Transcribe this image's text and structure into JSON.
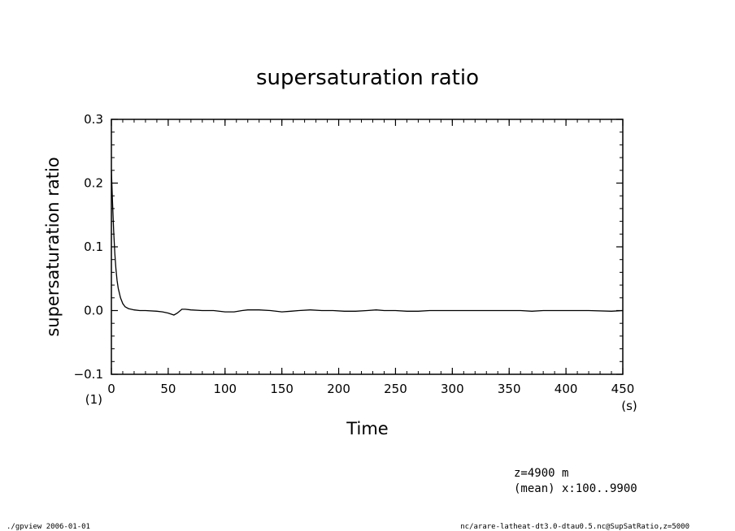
{
  "chart_data": {
    "type": "line",
    "title": "supersaturation ratio",
    "xlabel": "Time",
    "ylabel": "supersaturation ratio",
    "x_unit": "(s)",
    "y_unit": "(1)",
    "xlim": [
      0,
      450
    ],
    "ylim": [
      -0.1,
      0.3
    ],
    "x_ticks": [
      0,
      50,
      100,
      150,
      200,
      250,
      300,
      350,
      400,
      450
    ],
    "y_ticks": [
      -0.1,
      0.0,
      0.1,
      0.2,
      0.3
    ],
    "x_tick_labels": [
      "0",
      "50",
      "100",
      "150",
      "200",
      "250",
      "300",
      "350",
      "400",
      "450"
    ],
    "y_tick_labels": [
      "−0.1",
      "0.0",
      "0.1",
      "0.2",
      "0.3"
    ],
    "x_minor_step": 10,
    "y_minor_step": 0.02,
    "grid": false,
    "series": [
      {
        "x": [
          0,
          1,
          2,
          3,
          4,
          5,
          6,
          8,
          10,
          12,
          15,
          20,
          25,
          30,
          40,
          45,
          50,
          55,
          58,
          62,
          65,
          70,
          80,
          90,
          100,
          108,
          115,
          120,
          130,
          140,
          150,
          158,
          165,
          175,
          185,
          195,
          205,
          215,
          225,
          233,
          240,
          250,
          260,
          270,
          280,
          300,
          320,
          340,
          360,
          370,
          380,
          400,
          420,
          440,
          450
        ],
        "y": [
          0.22,
          0.17,
          0.125,
          0.09,
          0.065,
          0.047,
          0.035,
          0.02,
          0.011,
          0.006,
          0.003,
          0.001,
          0.0,
          0.0,
          -0.001,
          -0.002,
          -0.004,
          -0.007,
          -0.004,
          0.002,
          0.002,
          0.001,
          0.0,
          0.0,
          -0.002,
          -0.002,
          0.0,
          0.001,
          0.001,
          0.0,
          -0.002,
          -0.001,
          0.0,
          0.001,
          0.0,
          0.0,
          -0.001,
          -0.001,
          0.0,
          0.001,
          0.0,
          0.0,
          -0.001,
          -0.001,
          0.0,
          0.0,
          0.0,
          0.0,
          0.0,
          -0.001,
          0.0,
          0.0,
          0.0,
          -0.001,
          0.0
        ]
      }
    ]
  },
  "annotations": {
    "z_level": "z=4900  m",
    "mean_range": "(mean) x:100..9900"
  },
  "footer": {
    "left": "./gpview  2006-01-01",
    "right": "nc/arare-latheat-dt3.0-dtau0.5.nc@SupSatRatio,z=5000"
  }
}
